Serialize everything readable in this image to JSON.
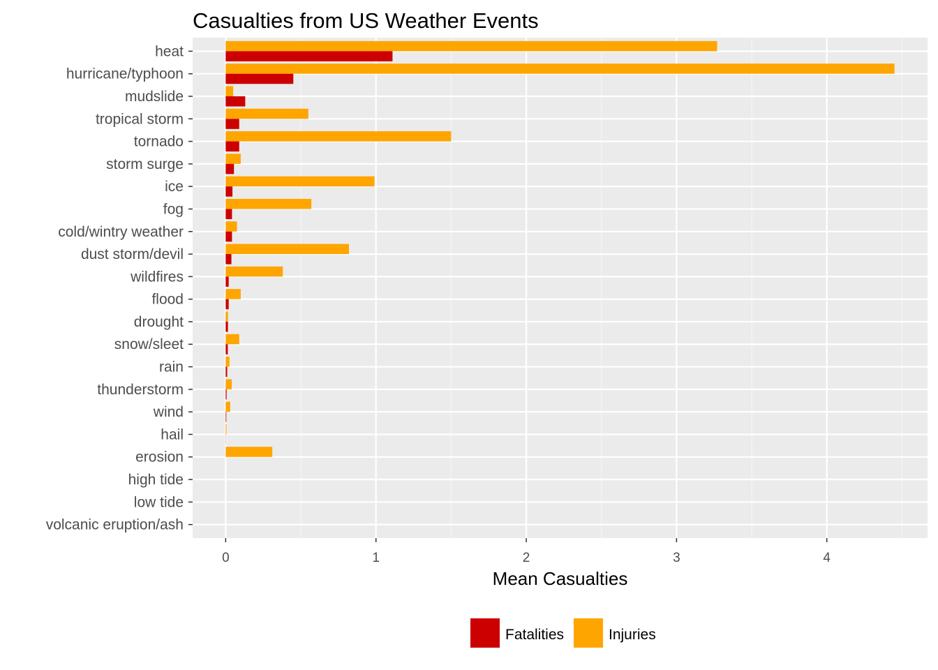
{
  "chart_data": {
    "type": "bar",
    "orientation": "horizontal",
    "title": "Casualties from US Weather Events",
    "xlabel": "Mean Casualties",
    "ylabel": "",
    "xlim": [
      -0.22,
      4.67
    ],
    "x_ticks": [
      0,
      1,
      2,
      3,
      4
    ],
    "grid": true,
    "legend_position": "bottom",
    "categories": [
      "heat",
      "hurricane/typhoon",
      "mudslide",
      "tropical storm",
      "tornado",
      "storm surge",
      "ice",
      "fog",
      "cold/wintry weather",
      "dust storm/devil",
      "wildfires",
      "flood",
      "drought",
      "snow/sleet",
      "rain",
      "thunderstorm",
      "wind",
      "hail",
      "erosion",
      "high tide",
      "low tide",
      "volcanic eruption/ash"
    ],
    "series": [
      {
        "name": "Fatalities",
        "color": "#CC0000",
        "values": [
          1.11,
          0.45,
          0.13,
          0.09,
          0.09,
          0.055,
          0.045,
          0.042,
          0.042,
          0.038,
          0.02,
          0.02,
          0.015,
          0.014,
          0.01,
          0.006,
          0.004,
          0.001,
          0,
          0,
          0,
          0
        ]
      },
      {
        "name": "Injuries",
        "color": "#FFA500",
        "values": [
          3.27,
          4.45,
          0.05,
          0.55,
          1.5,
          0.1,
          0.99,
          0.57,
          0.075,
          0.82,
          0.38,
          0.1,
          0.015,
          0.09,
          0.025,
          0.04,
          0.03,
          0.005,
          0.31,
          0,
          0,
          0
        ]
      }
    ]
  }
}
